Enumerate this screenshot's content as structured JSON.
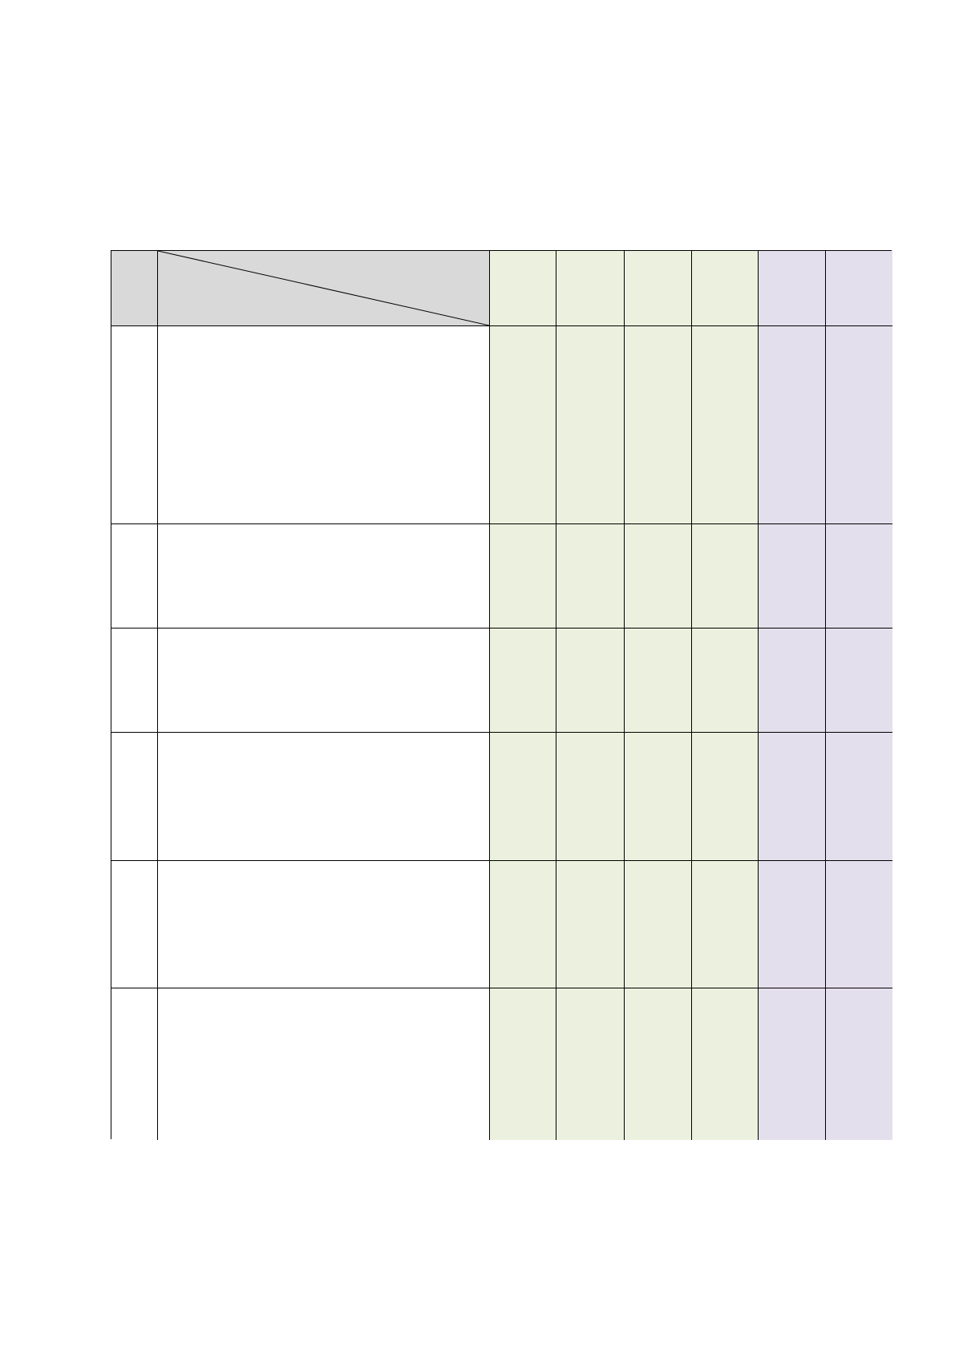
{
  "table": {
    "rows": [
      {
        "type": "header",
        "cells": [
          "",
          "",
          "",
          "",
          "",
          "",
          "",
          ""
        ]
      },
      {
        "type": "body",
        "cells": [
          "",
          "",
          "",
          "",
          "",
          "",
          "",
          ""
        ]
      },
      {
        "type": "body",
        "cells": [
          "",
          "",
          "",
          "",
          "",
          "",
          "",
          ""
        ]
      },
      {
        "type": "body",
        "cells": [
          "",
          "",
          "",
          "",
          "",
          "",
          "",
          ""
        ]
      },
      {
        "type": "body",
        "cells": [
          "",
          "",
          "",
          "",
          "",
          "",
          "",
          ""
        ]
      },
      {
        "type": "body",
        "cells": [
          "",
          "",
          "",
          "",
          "",
          "",
          "",
          ""
        ]
      },
      {
        "type": "body",
        "cells": [
          "",
          "",
          "",
          "",
          "",
          "",
          "",
          ""
        ]
      }
    ],
    "header_has_diagonal_split": true
  },
  "colors": {
    "header_gray": "#d9d9d9",
    "green_columns": "#ebf1de",
    "purple_columns": "#e4dfec",
    "body_white": "#ffffff",
    "border": "#000000"
  },
  "column_groups": [
    "index",
    "description",
    "green",
    "green",
    "green",
    "green",
    "purple",
    "purple"
  ]
}
